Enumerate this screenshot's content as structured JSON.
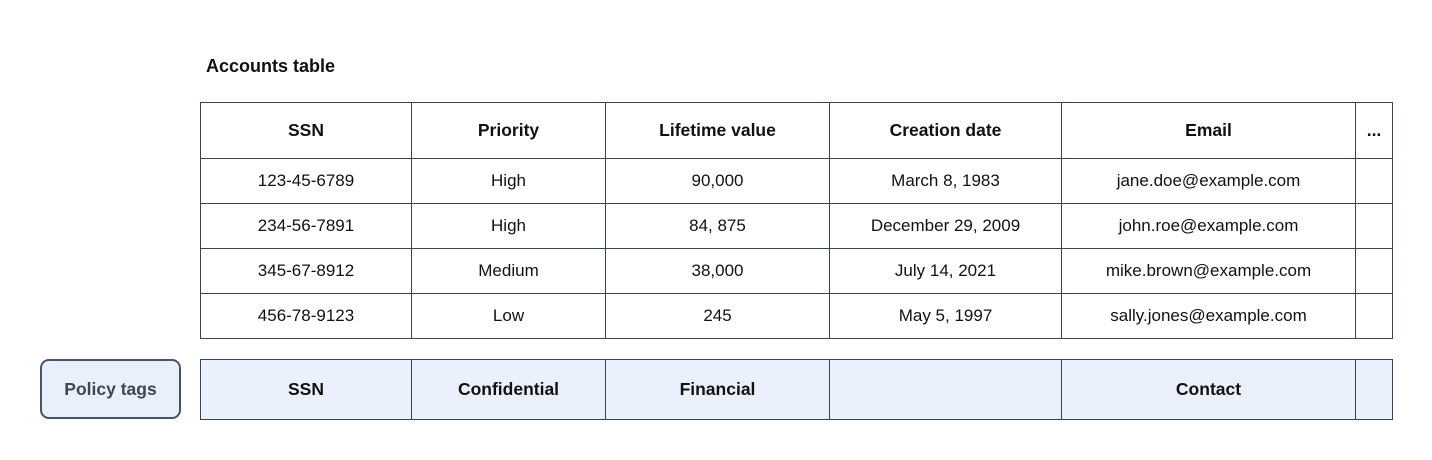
{
  "title": "Accounts table",
  "accounts_table": {
    "columns": [
      "SSN",
      "Priority",
      "Lifetime value",
      "Creation date",
      "Email",
      "..."
    ],
    "rows": [
      [
        "123-45-6789",
        "High",
        "90,000",
        "March 8, 1983",
        "jane.doe@example.com",
        ""
      ],
      [
        "234-56-7891",
        "High",
        "84, 875",
        "December 29, 2009",
        "john.roe@example.com",
        ""
      ],
      [
        "345-67-8912",
        "Medium",
        "38,000",
        "July 14, 2021",
        "mike.brown@example.com",
        ""
      ],
      [
        "456-78-9123",
        "Low",
        "245",
        "May 5, 1997",
        "sally.jones@example.com",
        ""
      ]
    ]
  },
  "policy": {
    "button_label": "Policy tags",
    "tags": [
      "SSN",
      "Confidential",
      "Financial",
      "",
      "Contact",
      ""
    ]
  },
  "colors": {
    "table_border": "#3c4450",
    "policy_cell_bg": "#eaf1fc",
    "policy_button_bg": "#e9f0fb",
    "policy_button_border": "#4a5362",
    "policy_button_text": "#3e4653"
  }
}
